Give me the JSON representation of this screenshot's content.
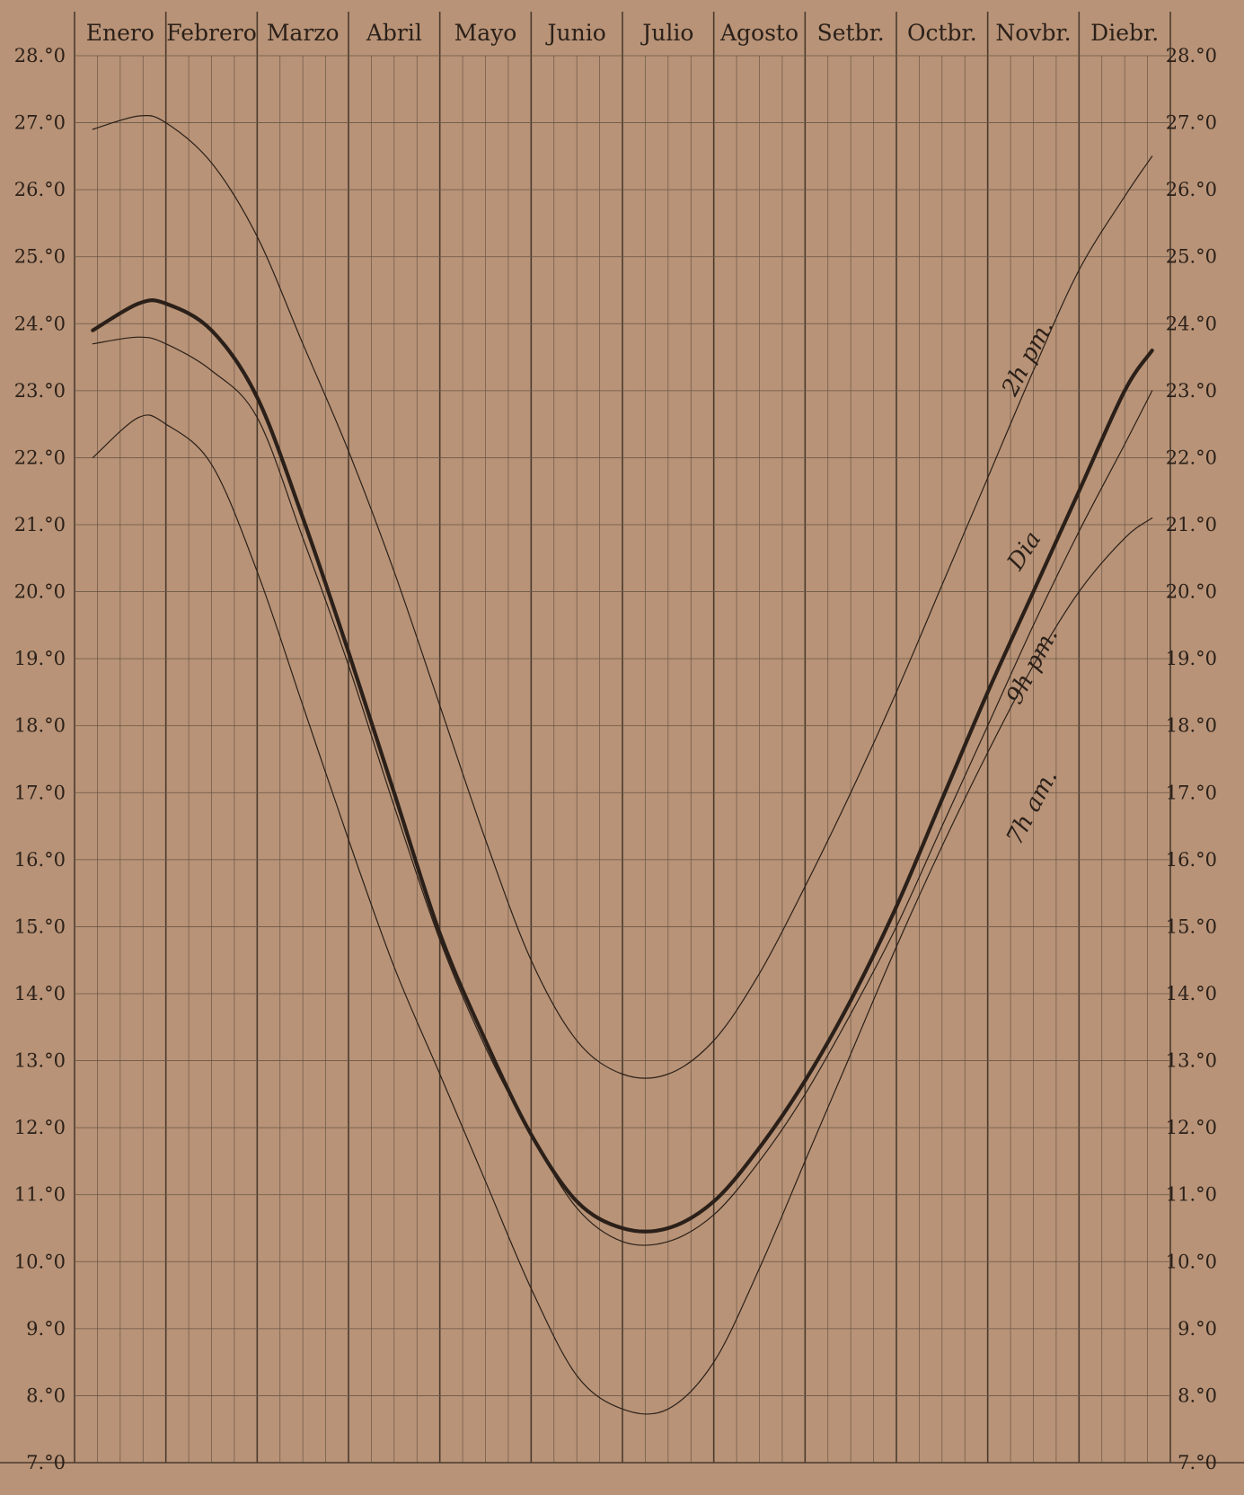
{
  "chart_data": {
    "type": "line",
    "months": [
      "Enero",
      "Febrero",
      "Marzo",
      "Abril",
      "Mayo",
      "Junio",
      "Julio",
      "Agosto",
      "Setbr.",
      "Octbr.",
      "Novbr.",
      "Diebr."
    ],
    "y_ticks_left": [
      "28.°0",
      "27.°0",
      "26.°0",
      "25.°0",
      "24.°0",
      "23.°0",
      "22.°0",
      "21.°0",
      "20.°0",
      "19.°0",
      "18.°0",
      "17.°0",
      "16.°0",
      "15.°0",
      "14.°0",
      "13.°0",
      "12.°0",
      "11.°0",
      "10.°0",
      "9.°0",
      "8.°0",
      "7.°0"
    ],
    "y_ticks_right": [
      "28.°0",
      "27.°0",
      "26.°0",
      "25.°0",
      "24.°0",
      "23.°0",
      "22.°0",
      "21.°0",
      "20.°0",
      "19.°0",
      "18.°0",
      "17.°0",
      "16.°0",
      "15.°0",
      "14.°0",
      "13.°0",
      "12.°0",
      "11.°0",
      "10.°0",
      "9.°0",
      "8.°0",
      "7.°0"
    ],
    "ylim": [
      7,
      28
    ],
    "grid": true,
    "series": [
      {
        "name": "2h pm.",
        "weight": "thin",
        "x": [
          0.2,
          0.7,
          1.0,
          1.5,
          2.0,
          2.5,
          3.0,
          3.5,
          4.0,
          4.5,
          5.0,
          5.5,
          6.0,
          6.5,
          7.0,
          7.5,
          8.0,
          8.5,
          9.0,
          9.5,
          10.0,
          10.5,
          11.0,
          11.5,
          11.8
        ],
        "y": [
          26.9,
          27.1,
          27.0,
          26.4,
          25.3,
          23.7,
          22.1,
          20.3,
          18.3,
          16.3,
          14.5,
          13.3,
          12.8,
          12.8,
          13.3,
          14.3,
          15.6,
          17.0,
          18.5,
          20.1,
          21.7,
          23.3,
          24.8,
          25.9,
          26.5
        ]
      },
      {
        "name": "Dia",
        "weight": "bold",
        "x": [
          0.2,
          0.7,
          1.0,
          1.5,
          2.0,
          2.5,
          3.0,
          3.5,
          4.0,
          4.5,
          5.0,
          5.5,
          6.0,
          6.5,
          7.0,
          7.5,
          8.0,
          8.5,
          9.0,
          9.5,
          10.0,
          10.5,
          11.0,
          11.5,
          11.8
        ],
        "y": [
          23.9,
          24.3,
          24.3,
          23.9,
          22.9,
          21.1,
          19.1,
          17.0,
          14.9,
          13.3,
          11.9,
          10.9,
          10.5,
          10.5,
          10.9,
          11.7,
          12.7,
          13.9,
          15.3,
          16.9,
          18.5,
          20.0,
          21.5,
          23.0,
          23.6
        ]
      },
      {
        "name": "9h pm.",
        "weight": "thin",
        "x": [
          0.2,
          0.7,
          1.0,
          1.5,
          2.0,
          2.5,
          3.0,
          3.5,
          4.0,
          4.5,
          5.0,
          5.5,
          6.0,
          6.5,
          7.0,
          7.5,
          8.0,
          8.5,
          9.0,
          9.5,
          10.0,
          10.5,
          11.0,
          11.5,
          11.8
        ],
        "y": [
          23.7,
          23.8,
          23.7,
          23.3,
          22.6,
          20.8,
          18.9,
          16.8,
          14.8,
          13.2,
          11.9,
          10.8,
          10.3,
          10.3,
          10.7,
          11.5,
          12.5,
          13.7,
          15.0,
          16.5,
          18.0,
          19.5,
          20.9,
          22.2,
          23.0
        ]
      },
      {
        "name": "7h am.",
        "weight": "thin",
        "x": [
          0.2,
          0.7,
          1.0,
          1.5,
          2.0,
          2.5,
          3.0,
          3.5,
          4.0,
          4.5,
          5.0,
          5.5,
          6.0,
          6.5,
          7.0,
          7.5,
          8.0,
          8.5,
          9.0,
          9.5,
          10.0,
          10.5,
          11.0,
          11.5,
          11.8
        ],
        "y": [
          22.0,
          22.6,
          22.5,
          21.9,
          20.3,
          18.3,
          16.3,
          14.4,
          12.8,
          11.2,
          9.6,
          8.3,
          7.8,
          7.8,
          8.5,
          9.9,
          11.5,
          13.1,
          14.7,
          16.2,
          17.6,
          18.9,
          20.0,
          20.8,
          21.1
        ]
      }
    ],
    "curve_labels": [
      {
        "series": "2h pm.",
        "text": "2h pm.",
        "x": 10.3,
        "y": 22.9,
        "angle": -62
      },
      {
        "series": "Dia",
        "text": "Dia",
        "x": 10.35,
        "y": 20.3,
        "angle": -57
      },
      {
        "series": "9h pm.",
        "text": "9h pm.",
        "x": 10.35,
        "y": 18.3,
        "angle": -62
      },
      {
        "series": "7h am.",
        "text": "7h am.",
        "x": 10.35,
        "y": 16.2,
        "angle": -62
      }
    ]
  },
  "colors": {
    "paper": "#b89377",
    "ink": "#2b2019",
    "grid": "#4a3a2e",
    "minor_grid": "#6a5646"
  }
}
